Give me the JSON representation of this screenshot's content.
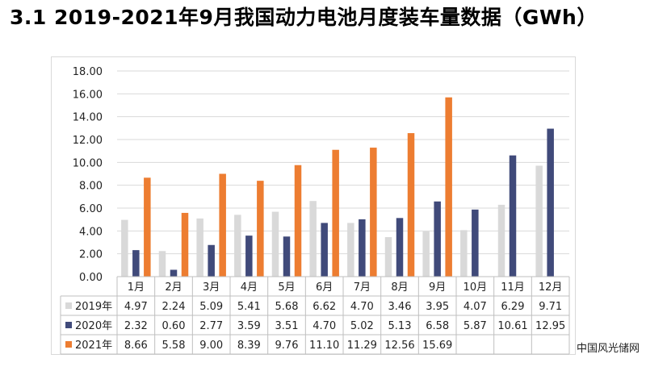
{
  "title": "3.1 2019-2021年9月我国动力电池月度装车量数据（GWh）",
  "watermark": "中国风光储网",
  "chart_data": {
    "type": "bar",
    "categories": [
      "1月",
      "2月",
      "3月",
      "4月",
      "5月",
      "6月",
      "7月",
      "8月",
      "9月",
      "10月",
      "11月",
      "12月"
    ],
    "series": [
      {
        "name": "2019年",
        "color": "#d9d9d9",
        "values": [
          4.97,
          2.24,
          5.09,
          5.41,
          5.68,
          6.62,
          4.7,
          3.46,
          3.95,
          4.07,
          6.29,
          9.71
        ]
      },
      {
        "name": "2020年",
        "color": "#404a7a",
        "values": [
          2.32,
          0.6,
          2.77,
          3.59,
          3.51,
          4.7,
          5.02,
          5.13,
          6.58,
          5.87,
          10.61,
          12.95
        ]
      },
      {
        "name": "2021年",
        "color": "#ed7d31",
        "values": [
          8.66,
          5.58,
          9.0,
          8.39,
          9.76,
          11.1,
          11.29,
          12.56,
          15.69,
          null,
          null,
          null
        ]
      }
    ],
    "ylim": [
      0,
      18
    ],
    "yticks": [
      "0.00",
      "2.00",
      "4.00",
      "6.00",
      "8.00",
      "10.00",
      "12.00",
      "14.00",
      "16.00",
      "18.00"
    ],
    "grid": true,
    "legend": "data-table-left"
  }
}
